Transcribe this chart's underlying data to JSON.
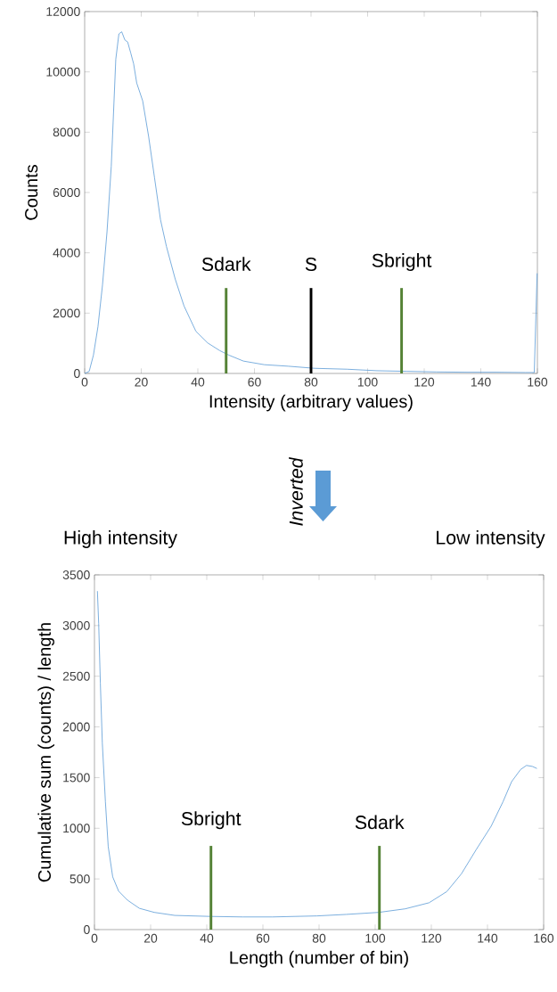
{
  "chart_data": [
    {
      "type": "line",
      "xlabel": "Intensity (arbitrary values)",
      "ylabel": "Counts",
      "xlim": [
        0,
        160
      ],
      "ylim": [
        0,
        12000
      ],
      "xticks": [
        0,
        20,
        40,
        60,
        80,
        100,
        120,
        140,
        160
      ],
      "yticks": [
        0,
        2000,
        4000,
        6000,
        8000,
        10000,
        12000
      ],
      "series": [
        {
          "color": "#5b9bd5",
          "x": [
            0,
            1.6,
            3.1,
            4.7,
            6.3,
            7.9,
            9.4,
            11,
            12.1,
            13.1,
            14.2,
            15.2,
            16.3,
            17.3,
            18.4,
            20.5,
            22.6,
            24.7,
            26.8,
            28.9,
            32,
            35.1,
            39.3,
            43.5,
            47.7,
            50.9,
            56.1,
            63.5,
            71.9,
            81.3,
            92.8,
            103.3,
            113.8,
            124.3,
            134.8,
            145.2,
            155.7,
            158.9,
            159.9
          ],
          "values": [
            0,
            70,
            610,
            1550,
            2930,
            4700,
            6870,
            10420,
            11260,
            11330,
            11060,
            10990,
            10620,
            10270,
            9630,
            9040,
            7860,
            6480,
            5100,
            4210,
            3130,
            2240,
            1400,
            1010,
            760,
            610,
            410,
            290,
            240,
            170,
            140,
            90,
            70,
            50,
            40,
            40,
            30,
            30,
            3320
          ]
        }
      ],
      "ref_lines": [
        {
          "axis": "x",
          "value": 50,
          "label": "Sdark",
          "color": "#548235"
        },
        {
          "axis": "x",
          "value": 80,
          "label": "S",
          "color": "#000000"
        },
        {
          "axis": "x",
          "value": 112,
          "label": "Sbright",
          "color": "#548235"
        }
      ]
    },
    {
      "type": "line",
      "xlabel": "Length (number of bin)",
      "ylabel": "Cumulative sum (counts) / length",
      "xlim": [
        0,
        160
      ],
      "ylim": [
        0,
        3500
      ],
      "xticks": [
        0,
        20,
        40,
        60,
        80,
        100,
        120,
        140,
        160
      ],
      "yticks": [
        0,
        500,
        1000,
        1500,
        2000,
        2500,
        3000,
        3500
      ],
      "series": [
        {
          "color": "#5b9bd5",
          "x": [
            1.05,
            1.5,
            2.1,
            2.8,
            3.9,
            4.9,
            6.5,
            8.6,
            11.8,
            16,
            21.3,
            28.6,
            41.3,
            52.8,
            63.4,
            79.2,
            89.7,
            101.3,
            110.7,
            119.2,
            125.5,
            130.7,
            136,
            141.3,
            145.5,
            148.6,
            151.8,
            153.9,
            156,
            157.6
          ],
          "values": [
            3340,
            3020,
            2430,
            1840,
            1260,
            820,
            520,
            380,
            290,
            210,
            170,
            140,
            130,
            125,
            125,
            135,
            150,
            170,
            205,
            265,
            375,
            550,
            790,
            1020,
            1260,
            1460,
            1580,
            1620,
            1610,
            1590
          ]
        }
      ],
      "ref_lines": [
        {
          "axis": "x",
          "value": 41.5,
          "label": "Sbright",
          "color": "#548235"
        },
        {
          "axis": "x",
          "value": 101.5,
          "label": "Sdark",
          "color": "#548235"
        }
      ],
      "annotations": [
        "High intensity",
        "Low intensity",
        "Inverted"
      ]
    }
  ]
}
